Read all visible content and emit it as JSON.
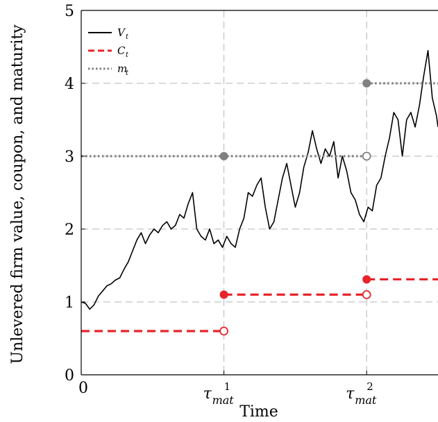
{
  "chart_data": {
    "type": "line",
    "title": "",
    "xlabel": "Time",
    "ylabel": "Unlevered firm value, coupon, and maturity",
    "xlim": [
      0,
      2.5
    ],
    "ylim": [
      0,
      5
    ],
    "grid": true,
    "legend_position": "top-left",
    "x_ticks": [
      {
        "value": 0,
        "label": "0"
      },
      {
        "value": 1,
        "label": "τ",
        "sup": "1",
        "sub": "mat"
      },
      {
        "value": 2,
        "label": "τ",
        "sup": "2",
        "sub": "mat"
      }
    ],
    "y_ticks": [
      {
        "value": 0,
        "label": "0"
      },
      {
        "value": 1,
        "label": "1"
      },
      {
        "value": 2,
        "label": "2"
      },
      {
        "value": 3,
        "label": "3"
      },
      {
        "value": 4,
        "label": "4"
      },
      {
        "value": 5,
        "label": "5"
      }
    ],
    "series": [
      {
        "name": "V",
        "name_sub": "t",
        "style": "solid",
        "color": "#000000",
        "points": [
          [
            0.0,
            1.0
          ],
          [
            0.03,
            0.98
          ],
          [
            0.06,
            0.9
          ],
          [
            0.09,
            0.96
          ],
          [
            0.12,
            1.08
          ],
          [
            0.15,
            1.15
          ],
          [
            0.18,
            1.22
          ],
          [
            0.21,
            1.25
          ],
          [
            0.24,
            1.3
          ],
          [
            0.27,
            1.33
          ],
          [
            0.3,
            1.45
          ],
          [
            0.33,
            1.55
          ],
          [
            0.36,
            1.7
          ],
          [
            0.39,
            1.85
          ],
          [
            0.42,
            1.95
          ],
          [
            0.45,
            1.8
          ],
          [
            0.48,
            1.92
          ],
          [
            0.51,
            2.0
          ],
          [
            0.54,
            1.95
          ],
          [
            0.57,
            2.05
          ],
          [
            0.6,
            2.1
          ],
          [
            0.63,
            2.0
          ],
          [
            0.66,
            2.05
          ],
          [
            0.69,
            2.2
          ],
          [
            0.72,
            2.15
          ],
          [
            0.75,
            2.35
          ],
          [
            0.78,
            2.5
          ],
          [
            0.81,
            2.0
          ],
          [
            0.84,
            1.9
          ],
          [
            0.87,
            1.85
          ],
          [
            0.9,
            2.0
          ],
          [
            0.93,
            1.8
          ],
          [
            0.96,
            1.85
          ],
          [
            0.99,
            1.75
          ],
          [
            1.02,
            1.9
          ],
          [
            1.05,
            1.8
          ],
          [
            1.08,
            1.75
          ],
          [
            1.11,
            2.0
          ],
          [
            1.14,
            2.15
          ],
          [
            1.17,
            2.5
          ],
          [
            1.2,
            2.45
          ],
          [
            1.23,
            2.6
          ],
          [
            1.26,
            2.7
          ],
          [
            1.29,
            2.3
          ],
          [
            1.32,
            2.0
          ],
          [
            1.35,
            2.1
          ],
          [
            1.38,
            2.4
          ],
          [
            1.41,
            2.7
          ],
          [
            1.44,
            2.9
          ],
          [
            1.47,
            2.6
          ],
          [
            1.5,
            2.3
          ],
          [
            1.53,
            2.5
          ],
          [
            1.56,
            2.85
          ],
          [
            1.59,
            3.05
          ],
          [
            1.62,
            3.35
          ],
          [
            1.65,
            3.1
          ],
          [
            1.68,
            2.9
          ],
          [
            1.71,
            3.1
          ],
          [
            1.74,
            3.0
          ],
          [
            1.77,
            3.2
          ],
          [
            1.8,
            2.7
          ],
          [
            1.83,
            3.0
          ],
          [
            1.86,
            2.8
          ],
          [
            1.89,
            2.5
          ],
          [
            1.92,
            2.4
          ],
          [
            1.95,
            2.2
          ],
          [
            1.98,
            2.1
          ],
          [
            2.01,
            2.3
          ],
          [
            2.04,
            2.25
          ],
          [
            2.07,
            2.6
          ],
          [
            2.1,
            2.7
          ],
          [
            2.13,
            3.0
          ],
          [
            2.16,
            3.25
          ],
          [
            2.19,
            3.6
          ],
          [
            2.22,
            3.5
          ],
          [
            2.25,
            3.0
          ],
          [
            2.28,
            3.5
          ],
          [
            2.31,
            3.6
          ],
          [
            2.34,
            3.4
          ],
          [
            2.37,
            3.7
          ],
          [
            2.4,
            4.1
          ],
          [
            2.43,
            4.45
          ],
          [
            2.46,
            3.8
          ],
          [
            2.49,
            3.55
          ],
          [
            2.5,
            3.4
          ]
        ]
      },
      {
        "name": "C",
        "name_sub": "t",
        "style": "dashed",
        "color": "#e8232a",
        "segments": [
          [
            0,
            1,
            0.6
          ],
          [
            1,
            2,
            1.1
          ],
          [
            2,
            2.5,
            1.31
          ]
        ],
        "filled_points": [
          [
            1,
            1.1
          ],
          [
            2,
            1.31
          ]
        ],
        "open_points": [
          [
            1,
            0.6
          ],
          [
            2,
            1.1
          ]
        ]
      },
      {
        "name": "m",
        "name_sub": "t",
        "style": "dotted",
        "color": "#808080",
        "segments": [
          [
            0,
            2,
            3
          ],
          [
            2,
            2.5,
            4
          ]
        ],
        "filled_points": [
          [
            1,
            3
          ],
          [
            2,
            4
          ]
        ],
        "open_points": [
          [
            2,
            3
          ]
        ]
      }
    ]
  }
}
